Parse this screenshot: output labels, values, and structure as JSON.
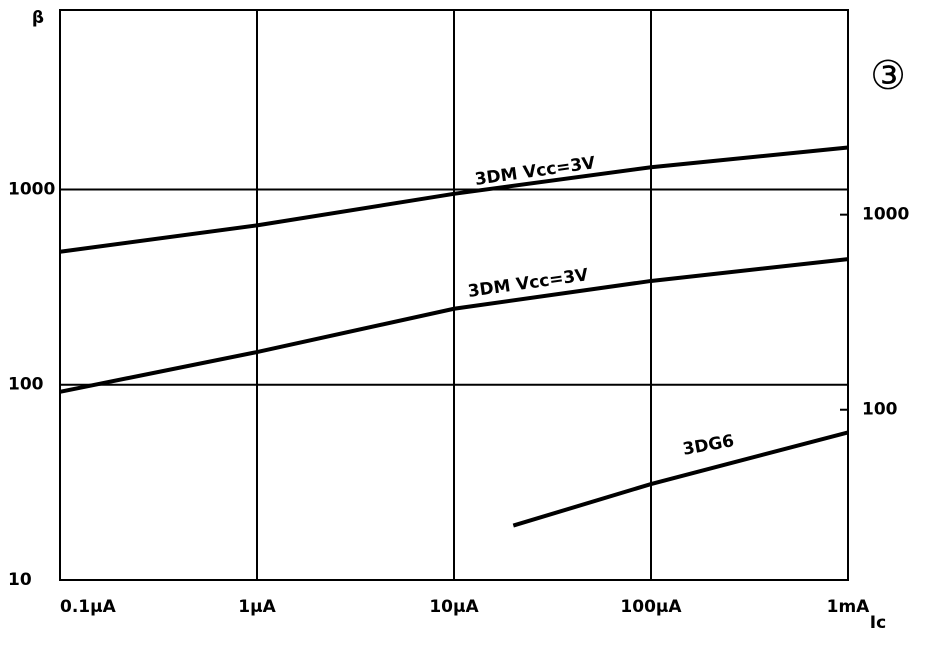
{
  "chart_data": {
    "type": "line",
    "y_label": "β",
    "x_label": "Ic",
    "annotation": "③",
    "xscale": "log",
    "yscale": "log",
    "grid": true,
    "xlim": [
      0.1,
      1000
    ],
    "xticks": [
      {
        "value": 0.1,
        "label": "0.1μA"
      },
      {
        "value": 1,
        "label": "1μA"
      },
      {
        "value": 10,
        "label": "10μA"
      },
      {
        "value": 100,
        "label": "100μA"
      },
      {
        "value": 1000,
        "label": "1mA"
      }
    ],
    "ylim": [
      10,
      8300
    ],
    "yticks": [
      10,
      100,
      1000
    ],
    "y2lim": [
      13.4,
      11200
    ],
    "y2ticks": [
      100,
      1000
    ],
    "series": [
      {
        "name": "3DM Vcc=3V",
        "color": "#000000",
        "x": [
          0.1,
          1,
          10,
          100,
          1000
        ],
        "values": [
          480,
          655,
          950,
          1300,
          1640
        ]
      },
      {
        "name": "3DM Vcc=3V",
        "color": "#000000",
        "x": [
          0.1,
          1,
          10,
          100,
          1000
        ],
        "values": [
          92,
          147,
          245,
          340,
          440
        ]
      },
      {
        "name": "3DG6",
        "color": "#000000",
        "x": [
          20,
          100,
          1000
        ],
        "values": [
          19,
          31,
          57
        ]
      }
    ]
  }
}
